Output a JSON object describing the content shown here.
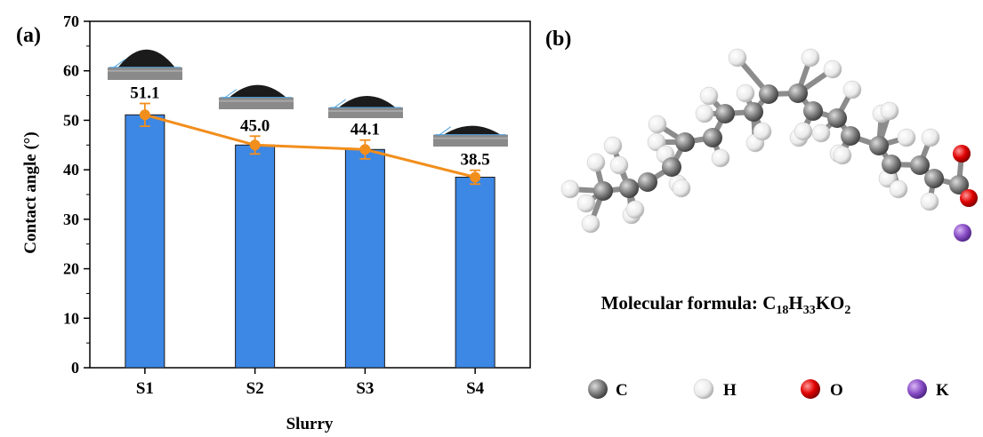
{
  "panel_a": {
    "label": "(a)",
    "chart_data": {
      "type": "bar",
      "categories": [
        "S1",
        "S2",
        "S3",
        "S4"
      ],
      "values": [
        51.1,
        45.0,
        44.1,
        38.5
      ],
      "value_labels": [
        "51.1",
        "45.0",
        "44.1",
        "38.5"
      ],
      "line_series": {
        "values": [
          51.1,
          45.0,
          44.1,
          38.5
        ],
        "errors": [
          2.3,
          1.8,
          1.9,
          1.4
        ]
      },
      "xlabel": "Slurry",
      "ylabel": "Contact angle (°)",
      "ylim": [
        0,
        70
      ],
      "yticks": [
        0,
        10,
        20,
        30,
        40,
        50,
        60,
        70
      ],
      "grid": false,
      "colors": {
        "bar": "#3d87e5",
        "bar_edge": "#1a1a1a",
        "line": "#f28e1c"
      }
    }
  },
  "panel_b": {
    "label": "(b)",
    "formula_prefix": "Molecular formula: ",
    "formula_parts": [
      {
        "text": "C",
        "sub": "18"
      },
      {
        "text": "H",
        "sub": "33"
      },
      {
        "text": "KO",
        "sub": "2"
      }
    ],
    "legend": [
      {
        "symbol": "C",
        "color": "#707070"
      },
      {
        "symbol": "H",
        "color": "#f4f4f4"
      },
      {
        "symbol": "O",
        "color": "#e00000"
      },
      {
        "symbol": "K",
        "color": "#8a4fc7"
      }
    ]
  }
}
